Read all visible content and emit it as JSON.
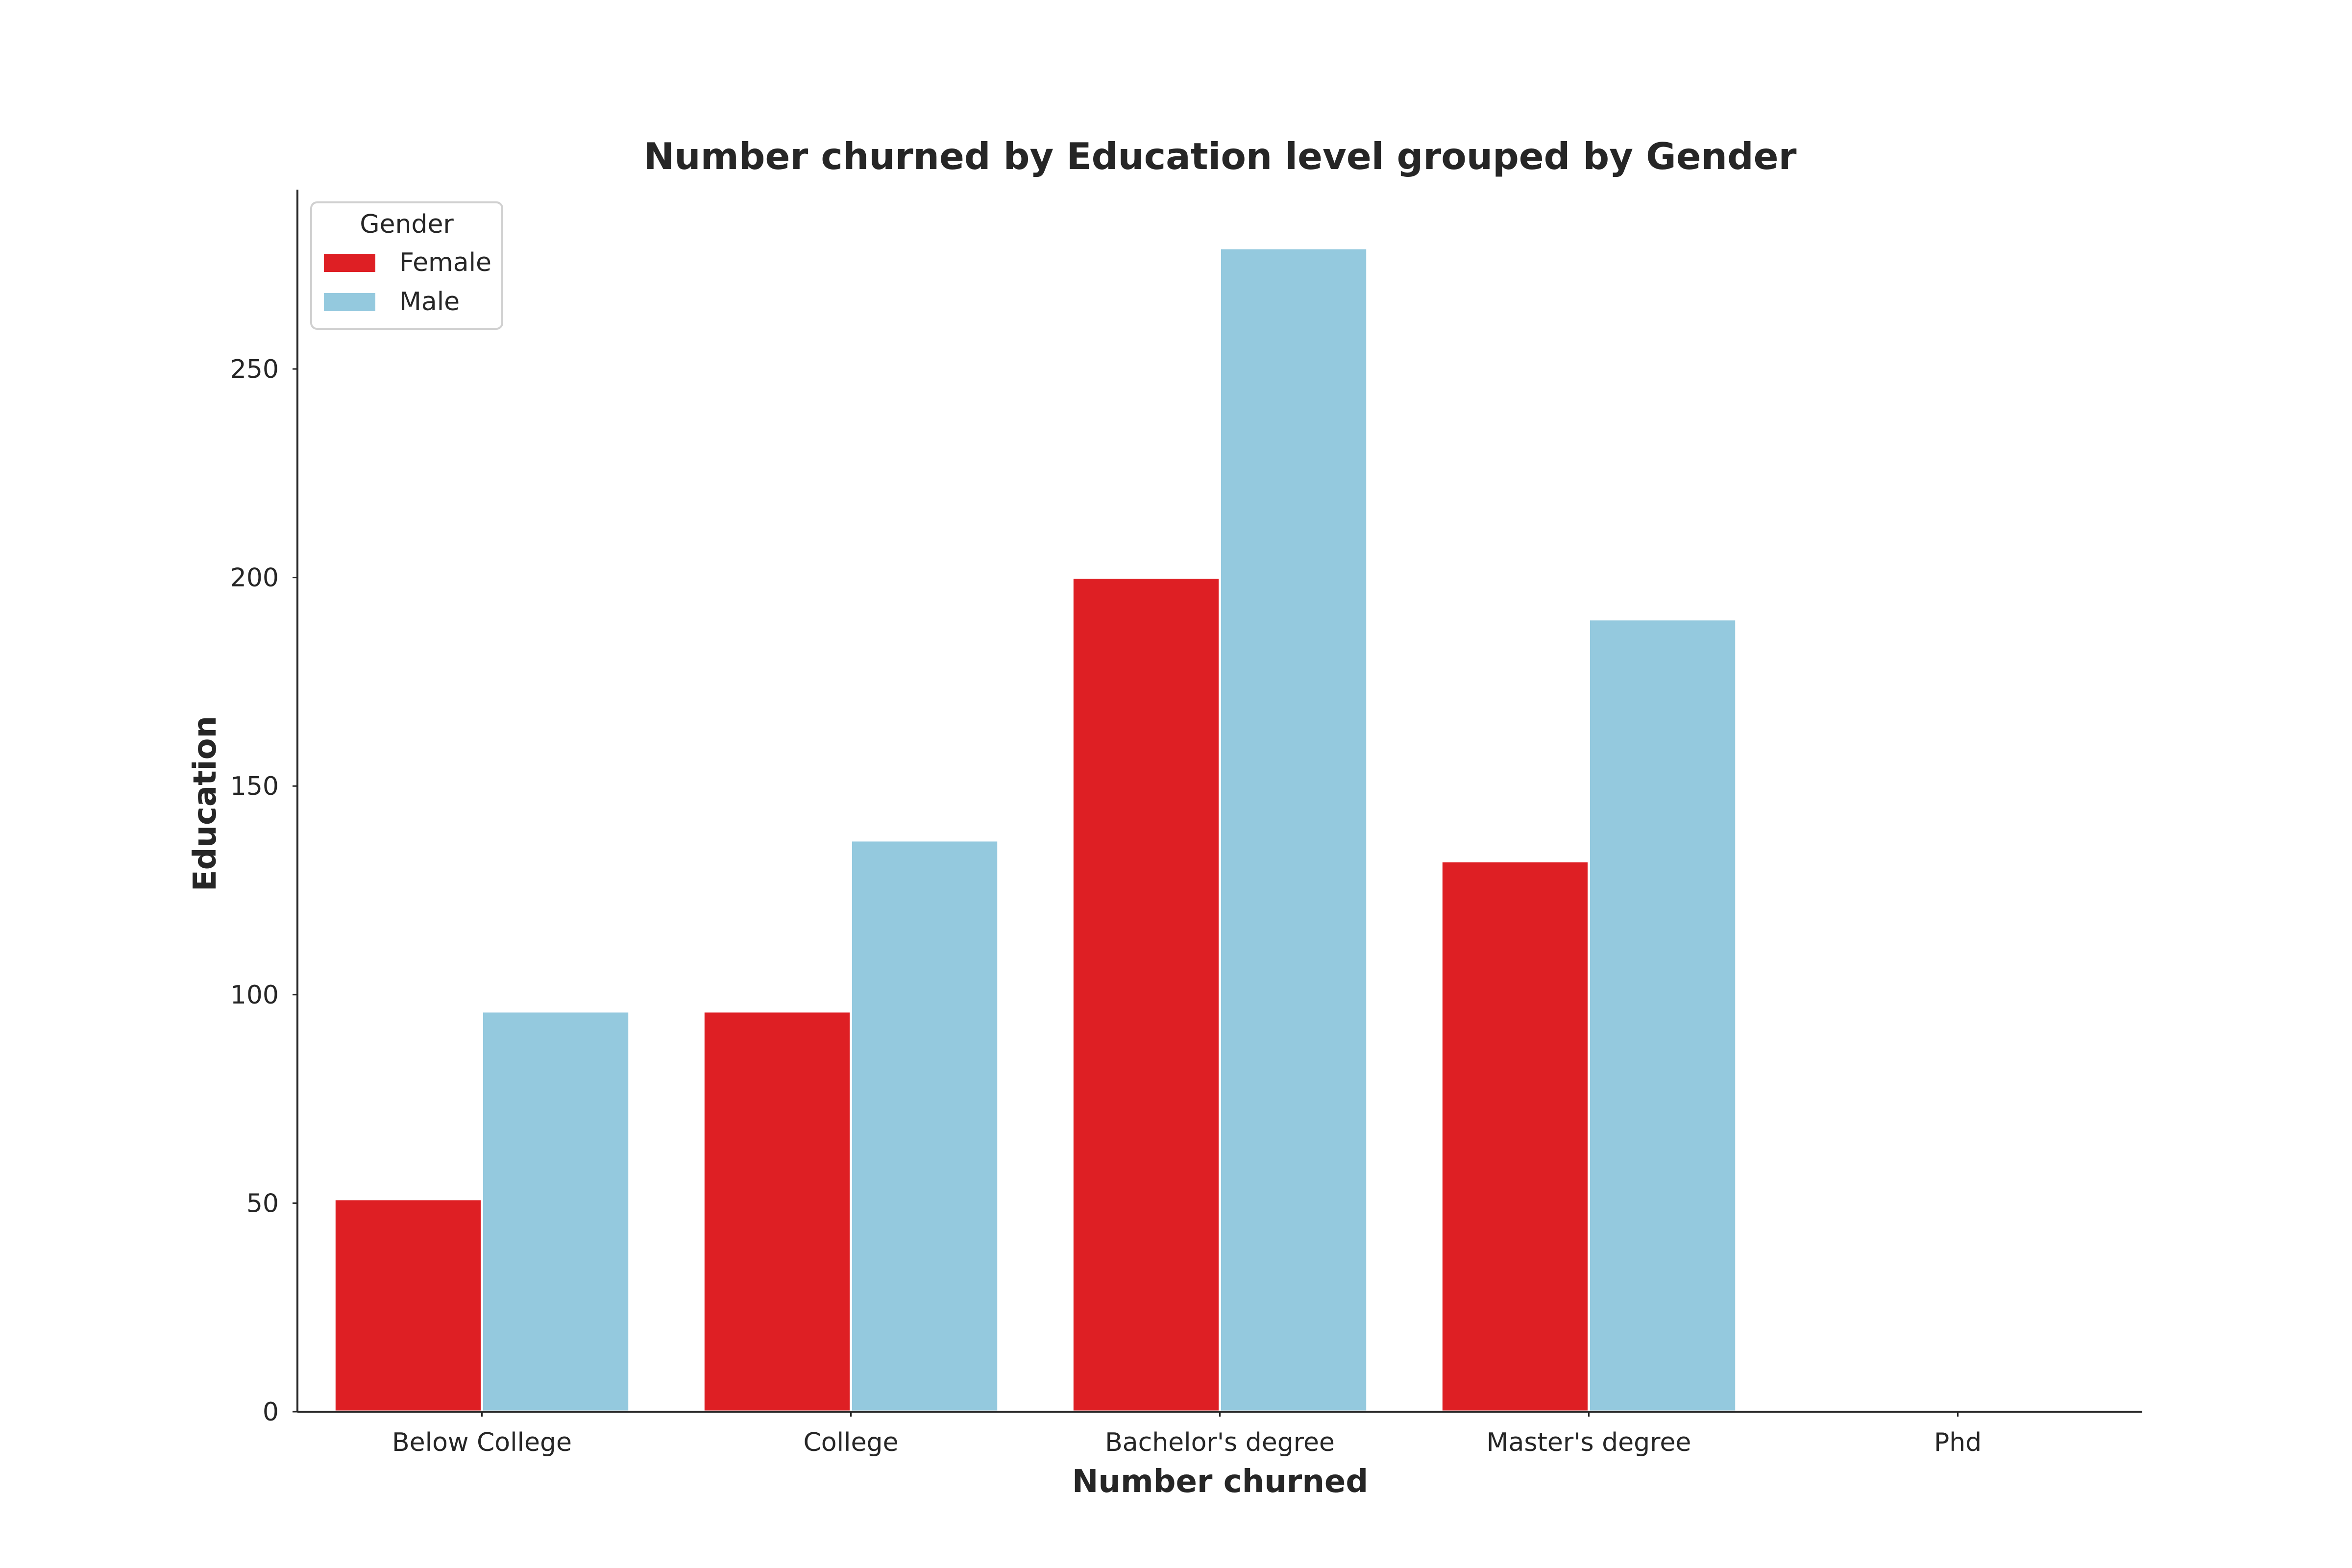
{
  "chart_data": {
    "type": "bar",
    "title": "Number churned by Education level grouped by Gender",
    "xlabel": "Number churned",
    "ylabel": "Education",
    "categories": [
      "Below College",
      "College",
      "Bachelor's degree",
      "Master's degree",
      "Phd"
    ],
    "series": [
      {
        "name": "Female",
        "color": "#de1f24",
        "values": [
          51,
          96,
          200,
          132,
          0
        ]
      },
      {
        "name": "Male",
        "color": "#94c9de",
        "values": [
          96,
          137,
          279,
          190,
          0
        ]
      }
    ],
    "ylim": [
      0,
      293
    ],
    "yticks": [
      0,
      50,
      100,
      150,
      200,
      250
    ],
    "grid": false,
    "legend": {
      "title": "Gender",
      "placement": "top-left"
    }
  }
}
